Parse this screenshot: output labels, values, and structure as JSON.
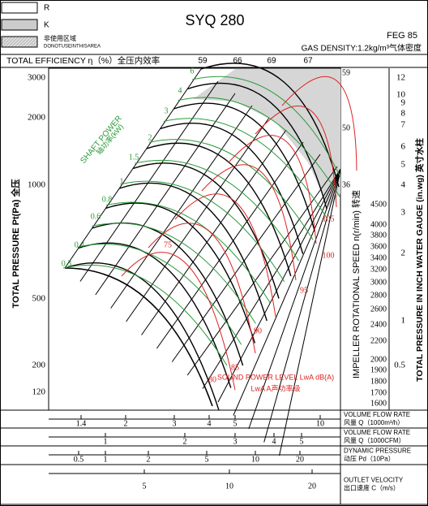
{
  "legend": [
    {
      "label": "R"
    },
    {
      "label": "K"
    },
    {
      "label": "非使用区域",
      "sublabel": "DONOTUSEINTHISAREA"
    }
  ],
  "title": "SYQ 280",
  "model": "FEG 85",
  "gas_density": "GAS DENSITY:1.2kg/m³气体密度",
  "efficiency": {
    "label": "TOTAL EFFICIENCY η（%）全压内效率",
    "ticks": [
      "59",
      "66",
      "69",
      "67"
    ]
  },
  "left_axis": {
    "label": "TOTAL PRESSURE Pt(Pa) 全压",
    "ticks": [
      "3000",
      "2000",
      "1000",
      "500",
      "200",
      "120"
    ]
  },
  "speed_axis": {
    "label": "IMPELLER ROTATIONAL SPEED n(r/min) 转速",
    "ticks": [
      "4500",
      "4000",
      "3800",
      "3600",
      "3400",
      "3200",
      "3000",
      "2800",
      "2600",
      "2400",
      "2200",
      "2000",
      "1900",
      "1800",
      "1700",
      "1600"
    ],
    "efficiency_marks": [
      "59",
      "50",
      "36"
    ]
  },
  "right_axis": {
    "label": "TOTAL PRESSURE IN INCH WATER GAUGE (in.wg) 英寸水柱",
    "ticks": [
      "12",
      "10",
      "9",
      "8",
      "7",
      "6",
      "5",
      "4",
      "3",
      "2",
      "1",
      "0.5"
    ]
  },
  "shaft_power": {
    "label": "SHAFT POWER",
    "unit": "轴功率(kW)",
    "values": [
      "0.3",
      "0.4",
      "0.6",
      "0.8",
      "1",
      "1.5",
      "2",
      "3",
      "4",
      "6"
    ]
  },
  "sound_power": {
    "label": "SOUND POWER LEVEL LwA dB(A)",
    "sublabel": "LwA A声功率级",
    "values": [
      "75",
      "80",
      "85",
      "90",
      "95",
      "100",
      "105"
    ]
  },
  "rows": [
    {
      "label": "VOLUME FLOW RATE",
      "sublabel": "风量 Q（1000m³/h）",
      "ticks": [
        "1.4",
        "2",
        "3",
        "4",
        "5",
        "10"
      ]
    },
    {
      "label": "VOLUME FLOW RATE",
      "sublabel": "风量 Q（1000CFM）",
      "ticks": [
        "1",
        "2",
        "3",
        "4",
        "5"
      ]
    },
    {
      "label": "DYNAMIC PRESSURE",
      "sublabel": "动压 Pd（10Pa）",
      "ticks": [
        "0.5",
        "1",
        "2",
        "5",
        "10",
        "20"
      ]
    },
    {
      "label": "OUTLET VELOCITY",
      "sublabel": "出口速度 C（m/s）",
      "ticks": [
        "5",
        "10",
        "20"
      ]
    }
  ]
}
